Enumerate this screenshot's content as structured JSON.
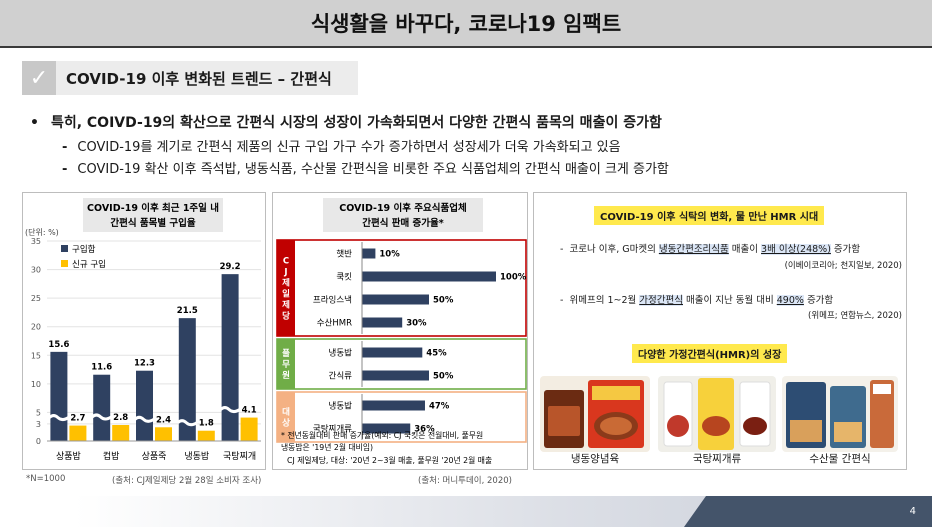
{
  "slide": {
    "title": "식생활을 바꾸다, 코로나19 임팩트",
    "section_label": "COVID-19 이후 변화된 트렌드 – 간편식",
    "bullet_main": "특히, COIVD-19의 확산으로 간편식 시장의 성장이 가속화되면서 다양한 간편식 품목의 매출이 증가함",
    "bullet_sub": [
      "COVID-19를 계기로 간편식 제품의 신규 구입 가구 수가 증가하면서 성장세가 더욱 가속화되고 있음",
      "COVID-19 확산 이후 즉석밥, 냉동식품, 수산물 간편식을 비롯한 주요 식품업체의 간편식 매출이 크게 증가함"
    ],
    "bullet_dot": "•",
    "bullet_dash": "-",
    "page_number": "4"
  },
  "left_chart_text": {
    "title_line1": "COVID-19 이후 최근 1주일 내",
    "title_line2": "간편식 품목별 구입율",
    "unit": "(단위: %)",
    "footnote": "*N=1000",
    "source": "(출처: CJ제일제당 2월 28일 소비자 조사)"
  },
  "mid_chart_text": {
    "title_line1": "COVID-19 이후 주요식품업체",
    "title_line2": "간편식 판매 증가율*",
    "note_line1": "* 전년동월대비 판매 증가율(예외: CJ 쿡킷은 전월대비, 풀무원",
    "note_line2": "냉동밥은 '19년 2월 대비임)",
    "note_line3": "CJ 제일제당, 대상: '20년 2~3월 매출, 풀무원 '20년 2월 매출",
    "source": "(출처: 머니투데이, 2020)"
  },
  "chart_data": [
    {
      "type": "bar",
      "title": "COVID-19 이후 최근 1주일 내 간편식 품목별 구입율",
      "ylabel": "(단위: %)",
      "categories": [
        "상품밥",
        "컵밥",
        "상품죽",
        "냉동밥",
        "국탕찌개"
      ],
      "series": [
        {
          "name": "구입함",
          "values": [
            15.6,
            11.6,
            12.3,
            21.5,
            29.2
          ],
          "color": "#2f4161"
        },
        {
          "name": "신규 구입",
          "values": [
            2.7,
            2.8,
            2.4,
            1.8,
            4.1
          ],
          "color": "#ffc000"
        }
      ],
      "ylim": [
        0,
        35
      ],
      "yticks": [
        0,
        3,
        5,
        10,
        15,
        20,
        25,
        30,
        35
      ],
      "grid": true,
      "legend": "top-left"
    },
    {
      "type": "bar",
      "orientation": "horizontal",
      "title": "COVID-19 이후 주요식품업체 간편식 판매 증가율*",
      "groups": [
        {
          "name": "CJ 제일제당",
          "color": "#c00000",
          "items": [
            {
              "label": "햇반",
              "value": 10,
              "value_label": "10%"
            },
            {
              "label": "쿡킷",
              "value": 100,
              "value_label": "100%"
            },
            {
              "label": "프라잉스낵",
              "value": 50,
              "value_label": "50%"
            },
            {
              "label": "수산HMR",
              "value": 30,
              "value_label": "30%"
            }
          ]
        },
        {
          "name": "풀무원",
          "color": "#70ad47",
          "items": [
            {
              "label": "냉동밥",
              "value": 45,
              "value_label": "45%"
            },
            {
              "label": "간식류",
              "value": 50,
              "value_label": "50%"
            }
          ]
        },
        {
          "name": "대상",
          "color": "#f4b183",
          "items": [
            {
              "label": "냉동밥",
              "value": 47,
              "value_label": "47%"
            },
            {
              "label": "국탕찌개류",
              "value": 36,
              "value_label": "36%"
            }
          ]
        }
      ],
      "bar_color": "#2f4161",
      "xlim": [
        0,
        100
      ]
    }
  ],
  "hmr_panel": {
    "title": "COVID-19 이후 식탁의 변화, 물 만난 HMR 시대",
    "item1_prefix": "코로나 이후, G마켓의 ",
    "item1_hl1": "냉동간편조리식품",
    "item1_mid": " 매출이 ",
    "item1_hl2": "3배 이상(248%)",
    "item1_suffix": " 증가함",
    "item1_source": "(이베이코리아; 천지일보, 2020)",
    "item2_prefix": "위메프의 1~2월 ",
    "item2_hl1": "가정간편식",
    "item2_mid": " 매출이 지난 동월 대비 ",
    "item2_hl2": "490%",
    "item2_suffix": " 증가함",
    "item2_source": "(위메프; 연합뉴스, 2020)",
    "subtitle": "다양한 가정간편식(HMR)의 성장",
    "products": [
      "냉동양념육",
      "국탕찌개류",
      "수산물 간편식"
    ],
    "dash": "-"
  }
}
